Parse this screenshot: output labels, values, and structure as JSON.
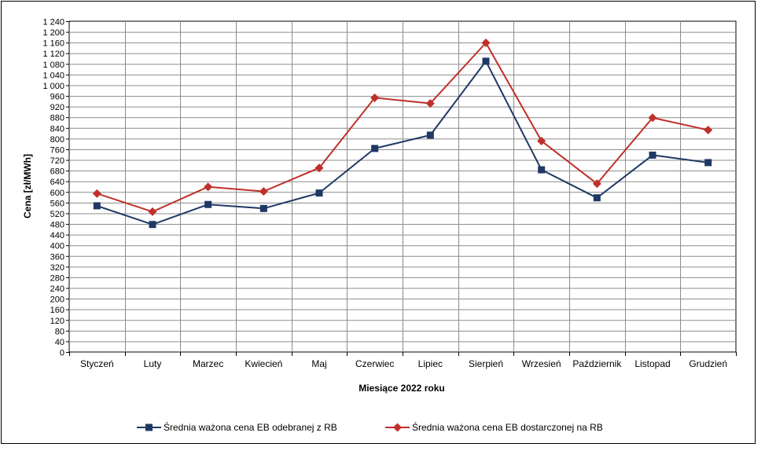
{
  "chart_data": {
    "type": "line",
    "xlabel": "Miesiące 2022  roku",
    "ylabel": "Cena [zł/MWh]",
    "categories": [
      "Styczeń",
      "Luty",
      "Marzec",
      "Kwiecień",
      "Maj",
      "Czerwiec",
      "Lipiec",
      "Sierpień",
      "Wrzesień",
      "Październik",
      "Listopad",
      "Grudzień"
    ],
    "ylim": [
      0,
      1240
    ],
    "ytick_step": 40,
    "yticks": [
      "0",
      "40",
      "80",
      "120",
      "160",
      "200",
      "240",
      "280",
      "320",
      "360",
      "400",
      "440",
      "480",
      "520",
      "560",
      "600",
      "640",
      "680",
      "720",
      "760",
      "800",
      "840",
      "880",
      "920",
      "960",
      "1 000",
      "1 040",
      "1 080",
      "1 120",
      "1 160",
      "1 200",
      "1 240"
    ],
    "grid": true,
    "legend_position": "bottom",
    "series": [
      {
        "name": "Średnia ważona cena EB odebranej z RB",
        "color": "#1f3864",
        "marker": "square",
        "values": [
          548,
          478,
          553,
          538,
          596,
          763,
          813,
          1090,
          683,
          578,
          738,
          710
        ]
      },
      {
        "name": "Średnia ważona cena EB dostarczonej na RB",
        "color": "#c0302a",
        "marker": "diamond",
        "values": [
          594,
          526,
          619,
          602,
          690,
          953,
          932,
          1159,
          791,
          631,
          878,
          832
        ]
      }
    ]
  }
}
